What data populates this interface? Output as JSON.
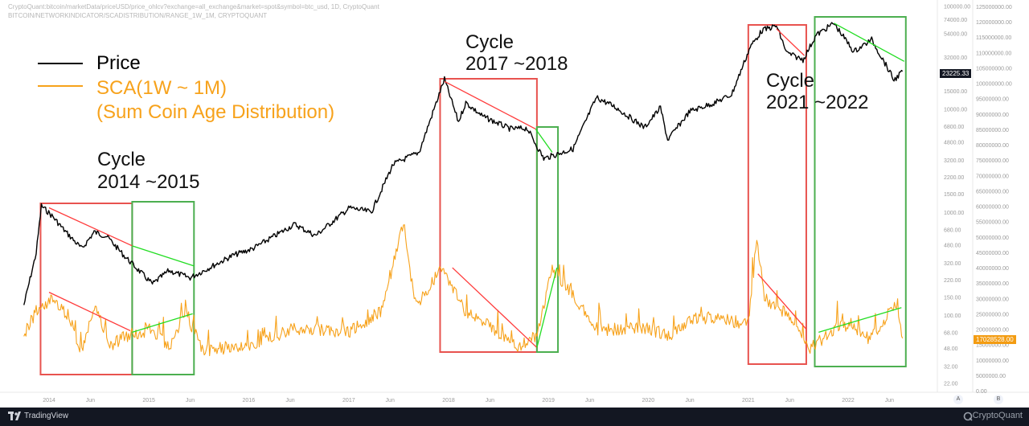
{
  "header": {
    "line1": "CryptoQuant:bitcoin/marketData/priceUSD/price_ohlcv?exchange=all_exchange&market=spot&symbol=btc_usd, 1D, CryptoQuant",
    "line2": "BITCOIN/NETWORKINDICATOR/SCADISTRIBUTION/RANGE_1W_1M, CRYPTOQUANT"
  },
  "legend": {
    "price_label": "Price",
    "sca_label_line1": "SCA(1W ~ 1M)",
    "sca_label_line2": "(Sum Coin Age Distribution)"
  },
  "cycles": [
    {
      "line1": "Cycle",
      "line2": "2014 ~2015"
    },
    {
      "line1": "Cycle",
      "line2": "2017 ~2018"
    },
    {
      "line1": "Cycle",
      "line2": "2021 ~2022"
    }
  ],
  "footer": {
    "brand_left": "TradingView",
    "brand_right": "CryptoQuant",
    "axis_btn_a": "A",
    "axis_btn_b": "B"
  },
  "colors": {
    "price": "#000000",
    "sca": "#f7a21b",
    "bear_box": "#e8534f",
    "accum_box": "#4caf50",
    "bear_trend": "#ff3b3b",
    "accum_trend": "#22dd22",
    "price_label_bg": "#131722",
    "sca_label_bg": "#f39c12"
  },
  "chart_data": {
    "type": "line",
    "title": "",
    "x_ticks": [
      "2014",
      "Jun",
      "2015",
      "Jun",
      "2016",
      "Jun",
      "2017",
      "Jun",
      "2018",
      "Jun",
      "2019",
      "Jun",
      "2020",
      "Jun",
      "2021",
      "Jun",
      "2022",
      "Jun"
    ],
    "price_axis": {
      "scale": "log",
      "ticks": [
        "100000.00",
        "74000.00",
        "54000.00",
        "32000.00",
        "22000.00",
        "15000.00",
        "10000.00",
        "6800.00",
        "4800.00",
        "3200.00",
        "2200.00",
        "1500.00",
        "1000.00",
        "680.00",
        "480.00",
        "320.00",
        "220.00",
        "150.00",
        "100.00",
        "68.00",
        "48.00",
        "32.00",
        "22.00",
        "15.00"
      ],
      "last_value": "23225.33"
    },
    "sca_axis": {
      "ticks": [
        "125000000.00",
        "120000000.00",
        "115000000.00",
        "110000000.00",
        "105000000.00",
        "100000000.00",
        "95000000.00",
        "90000000.00",
        "85000000.00",
        "80000000.00",
        "75000000.00",
        "70000000.00",
        "65000000.00",
        "60000000.00",
        "55000000.00",
        "50000000.00",
        "45000000.00",
        "40000000.00",
        "35000000.00",
        "30000000.00",
        "25000000.00",
        "20000000.00",
        "15000000.00",
        "10000000.00",
        "5000000.00",
        "0.00"
      ],
      "last_value": "17028528.00"
    },
    "series": [
      {
        "name": "Price",
        "scale": "price_axis",
        "x": [
          "2013-10-01",
          "2013-11-15",
          "2013-12-04",
          "2014-01-15",
          "2014-03-01",
          "2014-05-01",
          "2014-06-15",
          "2014-08-01",
          "2014-10-01",
          "2015-01-14",
          "2015-03-15",
          "2015-06-01",
          "2015-08-01",
          "2015-11-05",
          "2016-01-15",
          "2016-06-17",
          "2016-09-01",
          "2017-01-04",
          "2017-03-25",
          "2017-06-12",
          "2017-09-15",
          "2017-12-17",
          "2018-02-06",
          "2018-03-05",
          "2018-05-05",
          "2018-08-15",
          "2018-10-15",
          "2018-12-15",
          "2019-04-01",
          "2019-06-26",
          "2019-09-01",
          "2019-12-18",
          "2020-02-15",
          "2020-03-12",
          "2020-06-01",
          "2020-09-01",
          "2020-11-01",
          "2021-01-08",
          "2021-02-21",
          "2021-04-14",
          "2021-05-22",
          "2021-07-20",
          "2021-09-06",
          "2021-11-10",
          "2022-01-22",
          "2022-03-28",
          "2022-05-12",
          "2022-06-18",
          "2022-07-19"
        ],
        "values": [
          125,
          400,
          1150,
          900,
          650,
          440,
          640,
          580,
          380,
          200,
          270,
          230,
          280,
          380,
          440,
          760,
          590,
          1100,
          1000,
          2900,
          3800,
          19500,
          7500,
          11500,
          8500,
          6400,
          6500,
          3300,
          4100,
          12900,
          10500,
          6600,
          10300,
          5000,
          9500,
          11500,
          13800,
          40000,
          58000,
          64000,
          35000,
          30000,
          52000,
          68000,
          36000,
          47000,
          29000,
          19000,
          23225
        ]
      },
      {
        "name": "SCA(1W ~ 1M)",
        "scale": "sca_axis",
        "x": [
          "2013-10-01",
          "2013-11-15",
          "2014-01-15",
          "2014-03-15",
          "2014-05-01",
          "2014-06-15",
          "2014-08-15",
          "2014-10-15",
          "2015-01-15",
          "2015-03-15",
          "2015-05-15",
          "2015-07-15",
          "2016-01-01",
          "2016-06-15",
          "2017-01-01",
          "2017-05-01",
          "2017-07-20",
          "2017-09-01",
          "2017-12-10",
          "2018-03-01",
          "2018-06-15",
          "2018-09-15",
          "2018-11-20",
          "2019-01-15",
          "2019-07-01",
          "2020-01-01",
          "2020-03-15",
          "2020-07-01",
          "2021-01-01",
          "2021-02-01",
          "2021-03-01",
          "2021-05-20",
          "2021-08-15",
          "2021-11-15",
          "2022-01-15",
          "2022-03-15",
          "2022-05-15",
          "2022-07-01",
          "2022-07-19"
        ],
        "values": [
          18000000,
          26000000,
          30000000,
          24000000,
          12000000,
          27000000,
          15000000,
          18000000,
          20000000,
          14000000,
          26000000,
          13000000,
          15000000,
          20000000,
          19000000,
          26000000,
          55000000,
          27000000,
          40000000,
          26000000,
          20000000,
          14000000,
          18000000,
          40000000,
          20000000,
          20000000,
          18000000,
          24000000,
          22000000,
          49000000,
          30000000,
          25000000,
          14000000,
          20000000,
          22000000,
          16000000,
          23000000,
          28000000,
          17028528
        ]
      }
    ],
    "annotations": [
      {
        "label": "Cycle 2014 ~2015",
        "bear_box": [
          "2013-12-01",
          "2014-11-01"
        ],
        "accum_box": [
          "2014-11-01",
          "2015-06-15"
        ]
      },
      {
        "label": "Cycle 2017 ~2018",
        "bear_box": [
          "2017-12-01",
          "2018-11-20"
        ],
        "accum_box": [
          "2018-11-20",
          "2019-02-05"
        ]
      },
      {
        "label": "Cycle 2021 ~2022",
        "bear_box": [
          "2021-01-01",
          "2021-08-01"
        ],
        "accum_box": [
          "2021-09-01",
          "2022-07-31"
        ]
      }
    ],
    "grid": false,
    "legend_position": "top-left"
  }
}
